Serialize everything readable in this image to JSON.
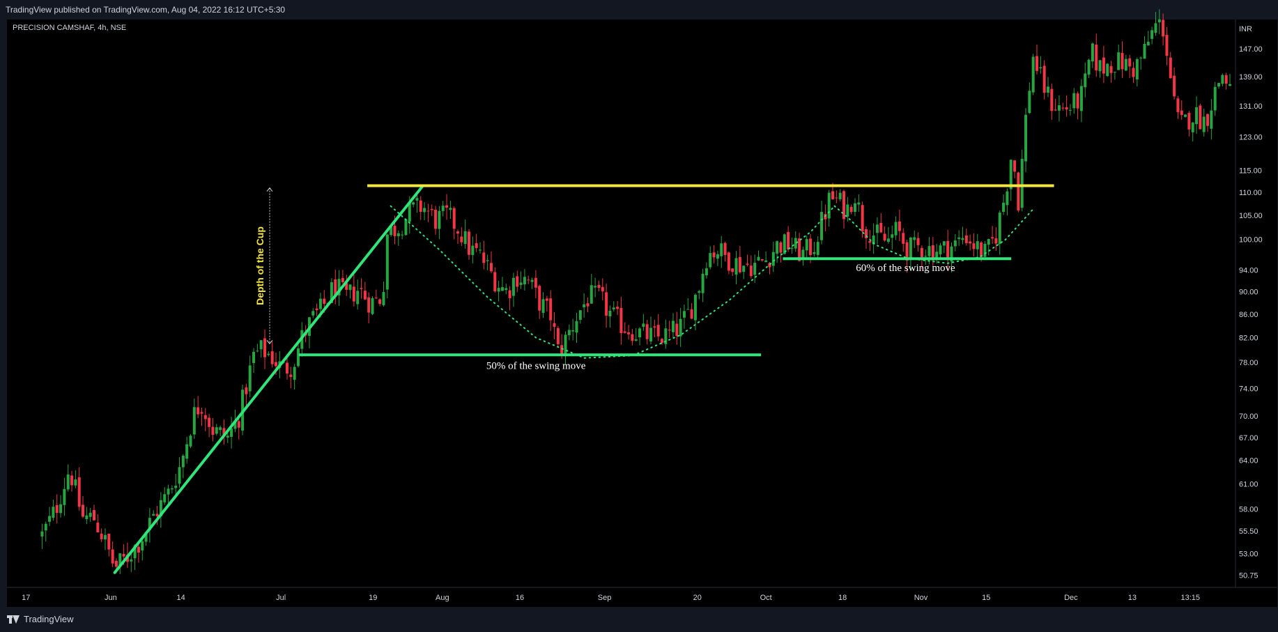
{
  "publish_text": "TradingView published on TradingView.com, Aug 04, 2022 16:12 UTC+5:30",
  "symbol_title": "PRECISION CAMSHAF, 4h, NSE",
  "footer_brand": "TradingView",
  "colors": {
    "background": "#000000",
    "frame": "#131722",
    "text": "#d1d4dc",
    "up_candle": "#26a641",
    "down_candle": "#f23645",
    "trendline": "#2ee67a",
    "resistance": "#f5e642",
    "depth_label": "#f5e642"
  },
  "chart_data": {
    "type": "candlestick",
    "currency": "INR",
    "y_scale": "log",
    "ylim": [
      49.5,
      156
    ],
    "xlim": [
      0,
      1500
    ],
    "y_ticks": [
      "147.00",
      "139.00",
      "131.00",
      "123.00",
      "115.00",
      "110.00",
      "105.00",
      "100.00",
      "94.00",
      "90.00",
      "86.00",
      "82.00",
      "78.00",
      "74.00",
      "70.00",
      "67.00",
      "64.00",
      "61.00",
      "58.00",
      "55.50",
      "53.00",
      "50.75"
    ],
    "x_ticks": [
      {
        "x": 8,
        "label": "17"
      },
      {
        "x": 113,
        "label": "Jun"
      },
      {
        "x": 200,
        "label": "14"
      },
      {
        "x": 324,
        "label": "Jul"
      },
      {
        "x": 438,
        "label": "19"
      },
      {
        "x": 524,
        "label": "Aug"
      },
      {
        "x": 620,
        "label": "16"
      },
      {
        "x": 725,
        "label": "Sep"
      },
      {
        "x": 840,
        "label": "20"
      },
      {
        "x": 925,
        "label": "Oct"
      },
      {
        "x": 1020,
        "label": "18"
      },
      {
        "x": 1117,
        "label": "Nov"
      },
      {
        "x": 1198,
        "label": "15"
      },
      {
        "x": 1303,
        "label": "Dec"
      },
      {
        "x": 1379,
        "label": "13"
      },
      {
        "x": 1451,
        "label": "13:15"
      }
    ],
    "price_path": [
      [
        28,
        55
      ],
      [
        45,
        58
      ],
      [
        62,
        63
      ],
      [
        78,
        57
      ],
      [
        92,
        57
      ],
      [
        105,
        54.5
      ],
      [
        118,
        51.5
      ],
      [
        132,
        52.5
      ],
      [
        150,
        54.5
      ],
      [
        168,
        57.5
      ],
      [
        185,
        60
      ],
      [
        200,
        63.5
      ],
      [
        215,
        70
      ],
      [
        225,
        72
      ],
      [
        240,
        68
      ],
      [
        258,
        67
      ],
      [
        272,
        70
      ],
      [
        290,
        79
      ],
      [
        300,
        80
      ],
      [
        312,
        79
      ],
      [
        325,
        77
      ],
      [
        338,
        77.5
      ],
      [
        350,
        82
      ],
      [
        362,
        85
      ],
      [
        375,
        87
      ],
      [
        390,
        91
      ],
      [
        405,
        89
      ],
      [
        420,
        90.5
      ],
      [
        435,
        88
      ],
      [
        450,
        89
      ],
      [
        455,
        101
      ],
      [
        463,
        102
      ],
      [
        472,
        103
      ],
      [
        485,
        106
      ],
      [
        500,
        107
      ],
      [
        515,
        104
      ],
      [
        530,
        105
      ],
      [
        545,
        102
      ],
      [
        558,
        98
      ],
      [
        570,
        97
      ],
      [
        582,
        94
      ],
      [
        595,
        91
      ],
      [
        605,
        90
      ],
      [
        615,
        93
      ],
      [
        630,
        92
      ],
      [
        645,
        88
      ],
      [
        658,
        86
      ],
      [
        668,
        79.5
      ],
      [
        678,
        82
      ],
      [
        692,
        86
      ],
      [
        705,
        89
      ],
      [
        718,
        89
      ],
      [
        732,
        86
      ],
      [
        748,
        84
      ],
      [
        762,
        83
      ],
      [
        775,
        82.5
      ],
      [
        790,
        82
      ],
      [
        805,
        82.5
      ],
      [
        820,
        84
      ],
      [
        832,
        87
      ],
      [
        842,
        91
      ],
      [
        852,
        97
      ],
      [
        865,
        98
      ],
      [
        880,
        96
      ],
      [
        895,
        95
      ],
      [
        910,
        95
      ],
      [
        925,
        96
      ],
      [
        940,
        99
      ],
      [
        955,
        99
      ],
      [
        970,
        97
      ],
      [
        985,
        99
      ],
      [
        995,
        104
      ],
      [
        1005,
        109
      ],
      [
        1015,
        108
      ],
      [
        1025,
        106
      ],
      [
        1035,
        110
      ],
      [
        1045,
        103
      ],
      [
        1060,
        101
      ],
      [
        1075,
        99.5
      ],
      [
        1088,
        102
      ],
      [
        1100,
        98
      ],
      [
        1115,
        98.5
      ],
      [
        1130,
        98
      ],
      [
        1145,
        98
      ],
      [
        1160,
        99
      ],
      [
        1172,
        101
      ],
      [
        1185,
        98.5
      ],
      [
        1198,
        97
      ],
      [
        1210,
        101
      ],
      [
        1222,
        110
      ],
      [
        1230,
        120
      ],
      [
        1238,
        108
      ],
      [
        1248,
        130
      ],
      [
        1256,
        145
      ],
      [
        1266,
        138
      ],
      [
        1278,
        132
      ],
      [
        1292,
        130
      ],
      [
        1305,
        131
      ],
      [
        1318,
        134
      ],
      [
        1328,
        146
      ],
      [
        1340,
        141
      ],
      [
        1352,
        143
      ],
      [
        1366,
        143
      ],
      [
        1380,
        141
      ],
      [
        1392,
        145
      ],
      [
        1402,
        151
      ],
      [
        1410,
        155
      ],
      [
        1418,
        153
      ],
      [
        1425,
        141
      ],
      [
        1433,
        128
      ],
      [
        1440,
        126
      ],
      [
        1455,
        129
      ],
      [
        1470,
        127
      ],
      [
        1480,
        134
      ],
      [
        1490,
        140
      ],
      [
        1500,
        136
      ]
    ],
    "annotations": {
      "resistance_line": {
        "price": 111.5,
        "x_start": 431,
        "x_end": 1282,
        "color": "#f5e642"
      },
      "trend_line": {
        "x_start": 118,
        "price_start": 51,
        "x_end": 500,
        "price_end": 111.5,
        "color": "#2ee67a"
      },
      "support_50": {
        "price": 79.2,
        "x_start": 346,
        "x_end": 919,
        "label": "50% of the swing move"
      },
      "support_60": {
        "price": 96.2,
        "x_start": 946,
        "x_end": 1229,
        "label": "60% of the swing move"
      },
      "depth_label": "Depth of the Cup",
      "depth_arrow": {
        "x": 310,
        "price_top": 111,
        "price_bottom": 81
      },
      "cup_curve": [
        [
          460,
          107
        ],
        [
          520,
          98
        ],
        [
          580,
          89
        ],
        [
          640,
          82
        ],
        [
          700,
          78.7
        ],
        [
          760,
          79.1
        ],
        [
          820,
          82.5
        ],
        [
          880,
          88.5
        ],
        [
          940,
          96.5
        ],
        [
          980,
          101.5
        ],
        [
          1010,
          107
        ]
      ],
      "handle_curve": [
        [
          1010,
          107
        ],
        [
          1030,
          104
        ],
        [
          1060,
          99
        ],
        [
          1100,
          96.3
        ],
        [
          1150,
          95.3
        ],
        [
          1190,
          96.5
        ],
        [
          1222,
          100
        ],
        [
          1257,
          106.5
        ]
      ]
    }
  }
}
